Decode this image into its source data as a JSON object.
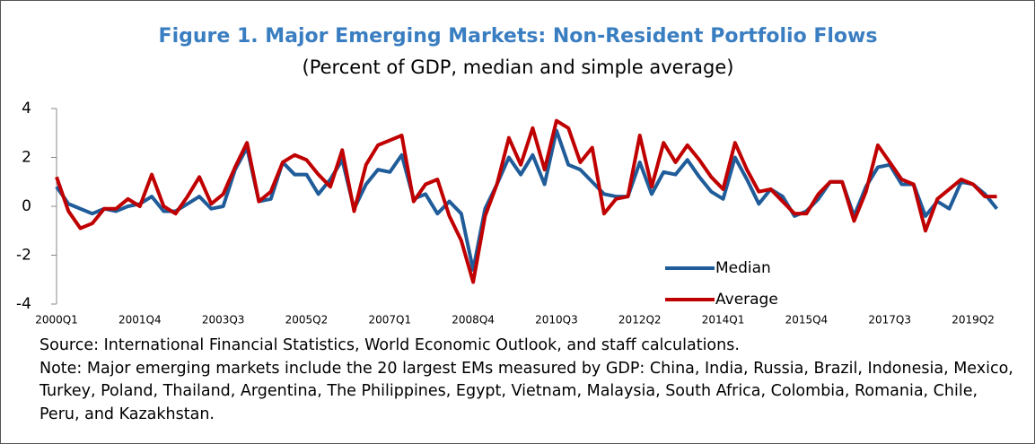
{
  "chart_data": {
    "type": "line",
    "title": "Figure 1. Major Emerging Markets: Non-Resident Portfolio Flows",
    "subtitle": "(Percent of GDP, median and simple average)",
    "categories": [
      "2000Q1",
      null,
      null,
      null,
      null,
      null,
      null,
      "2001Q4",
      null,
      null,
      null,
      null,
      null,
      null,
      "2003Q3",
      null,
      null,
      null,
      null,
      null,
      null,
      "2005Q2",
      null,
      null,
      null,
      null,
      null,
      null,
      "2007Q1",
      null,
      null,
      null,
      null,
      null,
      null,
      "2008Q4",
      null,
      null,
      null,
      null,
      null,
      null,
      "2010Q3",
      null,
      null,
      null,
      null,
      null,
      null,
      "2012Q2",
      null,
      null,
      null,
      null,
      null,
      null,
      "2014Q1",
      null,
      null,
      null,
      null,
      null,
      null,
      "2015Q4",
      null,
      null,
      null,
      null,
      null,
      null,
      "2017Q3",
      null,
      null,
      null,
      null,
      null,
      null,
      "2019Q2",
      null,
      null
    ],
    "series": [
      {
        "name": "Median",
        "color": "#1f5c99",
        "values": [
          0.8,
          0.1,
          -0.1,
          -0.3,
          -0.1,
          -0.2,
          0.0,
          0.1,
          0.4,
          -0.2,
          -0.2,
          0.1,
          0.4,
          -0.1,
          0.0,
          1.5,
          2.4,
          0.2,
          0.3,
          1.8,
          1.3,
          1.3,
          0.5,
          1.1,
          1.9,
          -0.1,
          0.9,
          1.5,
          1.4,
          2.1,
          0.3,
          0.5,
          -0.3,
          0.2,
          -0.3,
          -2.6,
          -0.1,
          0.9,
          2.0,
          1.3,
          2.1,
          0.9,
          3.1,
          1.7,
          1.5,
          1.0,
          0.5,
          0.4,
          0.4,
          1.8,
          0.5,
          1.4,
          1.3,
          1.9,
          1.2,
          0.6,
          0.3,
          2.0,
          1.1,
          0.1,
          0.7,
          0.4,
          -0.4,
          -0.2,
          0.3,
          1.0,
          1.0,
          -0.4,
          0.8,
          1.6,
          1.7,
          0.9,
          0.9,
          -0.4,
          0.2,
          -0.1,
          1.0,
          0.9,
          0.5,
          -0.1
        ]
      },
      {
        "name": "Average",
        "color": "#c00000",
        "values": [
          1.2,
          -0.2,
          -0.9,
          -0.7,
          -0.1,
          -0.1,
          0.3,
          0.0,
          1.3,
          0.0,
          -0.3,
          0.4,
          1.2,
          0.1,
          0.5,
          1.6,
          2.6,
          0.2,
          0.6,
          1.8,
          2.1,
          1.9,
          1.3,
          0.8,
          2.3,
          -0.2,
          1.7,
          2.5,
          2.7,
          2.9,
          0.2,
          0.9,
          1.1,
          -0.4,
          -1.4,
          -3.1,
          -0.4,
          0.9,
          2.8,
          1.7,
          3.2,
          1.5,
          3.5,
          3.2,
          1.8,
          2.4,
          -0.3,
          0.3,
          0.4,
          2.9,
          0.8,
          2.6,
          1.8,
          2.5,
          1.9,
          1.2,
          0.7,
          2.6,
          1.5,
          0.6,
          0.7,
          0.2,
          -0.3,
          -0.3,
          0.5,
          1.0,
          1.0,
          -0.6,
          0.6,
          2.5,
          1.8,
          1.1,
          0.9,
          -1.0,
          0.3,
          0.7,
          1.1,
          0.9,
          0.4,
          0.4
        ]
      }
    ],
    "ylim": [
      -4,
      4
    ],
    "yticks": [
      4,
      2,
      0,
      -2,
      -4
    ],
    "legend": "lower right",
    "source": "Source: International Financial Statistics, World Economic Outlook, and staff calculations.",
    "note": "Note: Major emerging markets include the 20 largest EMs measured by GDP: China, India, Russia, Brazil, Indonesia, Mexico, Turkey, Poland, Thailand, Argentina, The Philippines, Egypt, Vietnam, Malaysia, South Africa, Colombia, Romania, Chile, Peru, and Kazakhstan."
  }
}
